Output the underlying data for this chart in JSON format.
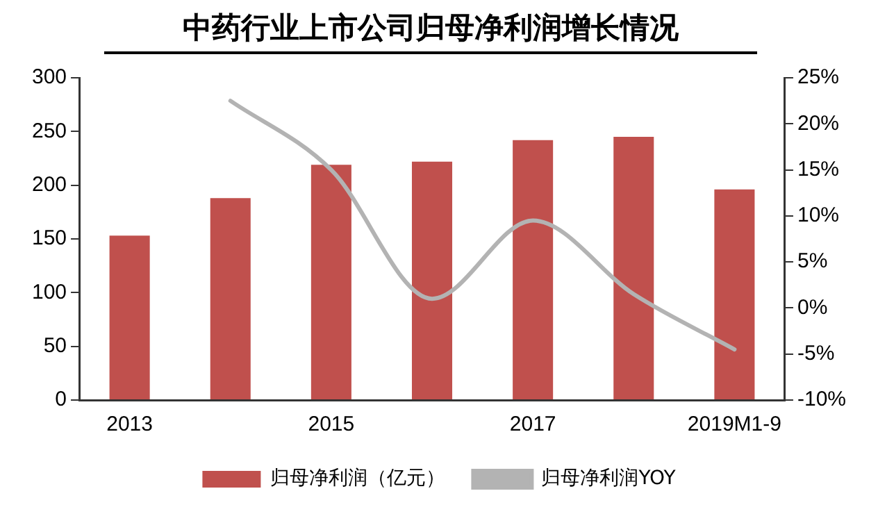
{
  "chart_data": {
    "type": "bar",
    "title": "中药行业上市公司归母净利润增长情况",
    "categories": [
      "2013",
      null,
      "2015",
      null,
      "2017",
      null,
      "2019M1-9"
    ],
    "series": [
      {
        "name": "归母净利润（亿元）",
        "color": "#c0504d",
        "values": [
          153,
          188,
          219,
          222,
          242,
          245,
          196
        ]
      },
      {
        "name": "归母净利润YOY",
        "type": "line",
        "axis": "y2",
        "color": "#b3b3b3",
        "values": [
          null,
          22.5,
          15,
          1,
          9.5,
          1.5,
          -4.5
        ]
      }
    ],
    "ylim": [
      0,
      300
    ],
    "yticks": [
      0,
      50,
      100,
      150,
      200,
      250,
      300
    ],
    "y2lim": [
      -10,
      25
    ],
    "y2ticks": [
      {
        "value": -10,
        "label": "-10%"
      },
      {
        "value": -5,
        "label": "-5%"
      },
      {
        "value": 0,
        "label": "0%"
      },
      {
        "value": 5,
        "label": "5%"
      },
      {
        "value": 10,
        "label": "10%"
      },
      {
        "value": 15,
        "label": "15%"
      },
      {
        "value": 20,
        "label": "20%"
      },
      {
        "value": 25,
        "label": "25%"
      }
    ],
    "grid": false,
    "legend": "bottom",
    "marker": "none"
  }
}
